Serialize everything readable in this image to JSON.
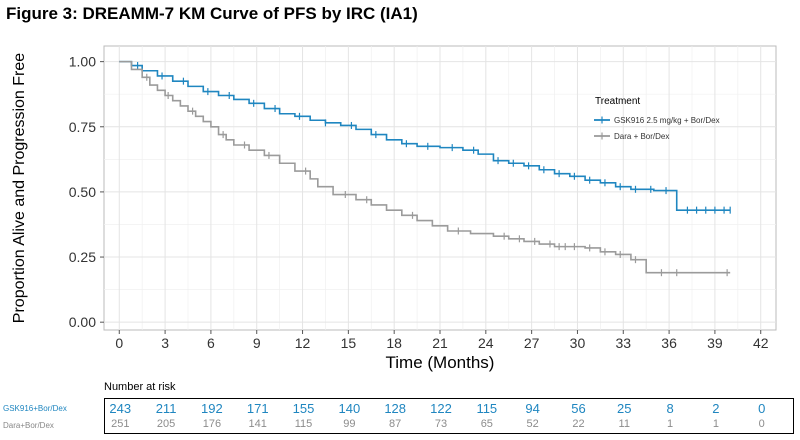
{
  "title": "Figure 3: DREAMM-7 KM Curve of PFS by IRC (IA1)",
  "colors": {
    "gsk": "#1f86c0",
    "dara": "#9b9b9b",
    "grid": "#e4e4e4",
    "panel_border": "#bbbbbb"
  },
  "chart_data": {
    "type": "line",
    "subtype": "kaplan-meier step curve",
    "xlabel": "Time (Months)",
    "ylabel": "Proportion Alive and Progression Free",
    "xlim": [
      -1,
      43
    ],
    "ylim": [
      -0.03,
      1.06
    ],
    "x_ticks": [
      0,
      3,
      6,
      9,
      12,
      15,
      18,
      21,
      24,
      27,
      30,
      33,
      36,
      39,
      42
    ],
    "y_ticks": [
      0.0,
      0.25,
      0.5,
      0.75,
      1.0
    ],
    "y_tick_labels": [
      "0.00",
      "0.25",
      "0.50",
      "0.75",
      "1.00"
    ],
    "grid": true,
    "legend": {
      "title": "Treatment",
      "position": "top-right"
    },
    "series": [
      {
        "name": "GSK916 2.5 mg/kg + Bor/Dex",
        "color": "#1f86c0",
        "points": [
          [
            0,
            1.0
          ],
          [
            0.8,
            0.985
          ],
          [
            1.5,
            0.965
          ],
          [
            2.5,
            0.945
          ],
          [
            3.5,
            0.925
          ],
          [
            4.5,
            0.905
          ],
          [
            5.5,
            0.885
          ],
          [
            6.5,
            0.87
          ],
          [
            7.5,
            0.855
          ],
          [
            8.5,
            0.84
          ],
          [
            9.5,
            0.82
          ],
          [
            10.5,
            0.8
          ],
          [
            11.5,
            0.79
          ],
          [
            12.5,
            0.775
          ],
          [
            13.5,
            0.765
          ],
          [
            14.5,
            0.755
          ],
          [
            15.5,
            0.74
          ],
          [
            16.5,
            0.72
          ],
          [
            17.5,
            0.7
          ],
          [
            18.5,
            0.685
          ],
          [
            19.5,
            0.675
          ],
          [
            21,
            0.67
          ],
          [
            22.5,
            0.66
          ],
          [
            23.5,
            0.645
          ],
          [
            24.5,
            0.62
          ],
          [
            25.5,
            0.61
          ],
          [
            26.5,
            0.6
          ],
          [
            27.5,
            0.585
          ],
          [
            28.5,
            0.57
          ],
          [
            29.5,
            0.56
          ],
          [
            30.5,
            0.545
          ],
          [
            31.5,
            0.535
          ],
          [
            32.5,
            0.52
          ],
          [
            33.5,
            0.51
          ],
          [
            35,
            0.505
          ],
          [
            36.5,
            0.43
          ],
          [
            40,
            0.43
          ]
        ],
        "censor_x": [
          1.2,
          2.8,
          4.2,
          5.8,
          7.2,
          8.8,
          10.2,
          11.8,
          13.5,
          15.2,
          16.8,
          18.8,
          20.2,
          21.8,
          23.2,
          24.8,
          25.8,
          26.8,
          27.8,
          28.8,
          29.8,
          30.8,
          31.8,
          32.8,
          33.8,
          34.8,
          35.8,
          37.2,
          37.8,
          38.4,
          39.0,
          39.6,
          40.0
        ]
      },
      {
        "name": "Dara + Bor/Dex",
        "color": "#9b9b9b",
        "points": [
          [
            0,
            1.0
          ],
          [
            0.8,
            0.97
          ],
          [
            1.5,
            0.94
          ],
          [
            2.0,
            0.91
          ],
          [
            2.5,
            0.89
          ],
          [
            3.0,
            0.87
          ],
          [
            3.5,
            0.85
          ],
          [
            4.0,
            0.83
          ],
          [
            4.5,
            0.81
          ],
          [
            5.0,
            0.79
          ],
          [
            5.5,
            0.77
          ],
          [
            6.0,
            0.75
          ],
          [
            6.5,
            0.72
          ],
          [
            7.0,
            0.7
          ],
          [
            7.5,
            0.68
          ],
          [
            8.5,
            0.66
          ],
          [
            9.5,
            0.64
          ],
          [
            10.5,
            0.61
          ],
          [
            11.5,
            0.58
          ],
          [
            12.5,
            0.55
          ],
          [
            13.0,
            0.52
          ],
          [
            14.0,
            0.49
          ],
          [
            15.5,
            0.47
          ],
          [
            16.5,
            0.45
          ],
          [
            17.5,
            0.43
          ],
          [
            18.5,
            0.41
          ],
          [
            19.5,
            0.39
          ],
          [
            20.5,
            0.37
          ],
          [
            21.5,
            0.35
          ],
          [
            23,
            0.34
          ],
          [
            24.5,
            0.33
          ],
          [
            25.5,
            0.32
          ],
          [
            26.5,
            0.31
          ],
          [
            27.5,
            0.3
          ],
          [
            28.5,
            0.29
          ],
          [
            30.5,
            0.285
          ],
          [
            31.5,
            0.27
          ],
          [
            32.5,
            0.26
          ],
          [
            33.5,
            0.24
          ],
          [
            34.5,
            0.19
          ],
          [
            40,
            0.19
          ]
        ],
        "censor_x": [
          1.8,
          3.2,
          4.8,
          6.8,
          8.2,
          9.8,
          12.2,
          14.8,
          16.2,
          19.2,
          22.2,
          25.2,
          26.2,
          27.2,
          28.2,
          28.8,
          29.2,
          29.8,
          30.8,
          31.8,
          32.8,
          33.8,
          35.5,
          36.5,
          39.8
        ]
      }
    ]
  },
  "risk_table": {
    "label": "Number at risk",
    "times": [
      0,
      3,
      6,
      9,
      12,
      15,
      18,
      21,
      24,
      27,
      30,
      33,
      36,
      39,
      42
    ],
    "rows": [
      {
        "name": "GSK916+Bor/Dex",
        "counts": [
          "243",
          "211",
          "192",
          "171",
          "155",
          "140",
          "128",
          "122",
          "115",
          "94",
          "56",
          "25",
          "8",
          "2",
          "0"
        ]
      },
      {
        "name": "Dara+Bor/Dex",
        "counts": [
          "251",
          "205",
          "176",
          "141",
          "115",
          "99",
          "87",
          "73",
          "65",
          "52",
          "22",
          "11",
          "1",
          "1",
          "0"
        ]
      }
    ]
  }
}
